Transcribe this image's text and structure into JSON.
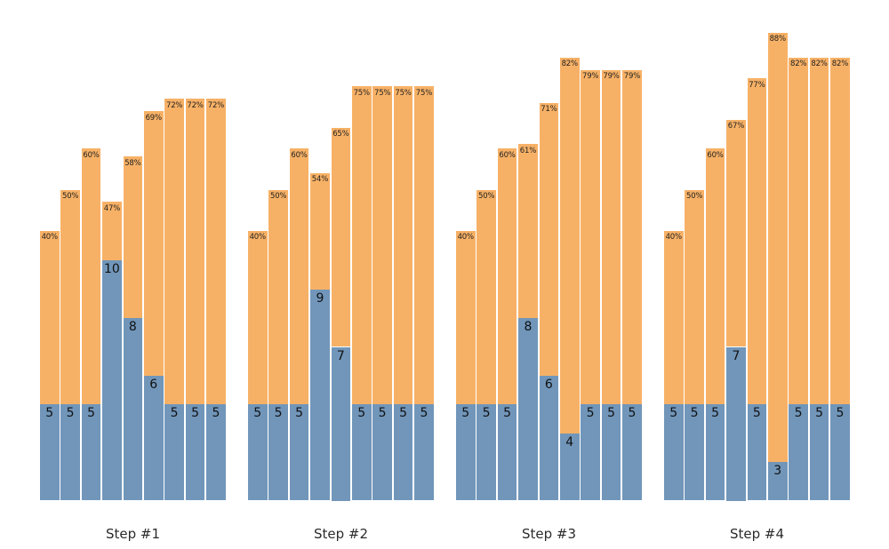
{
  "figure": {
    "background": "#ffffff"
  },
  "chart_data": {
    "type": "bar",
    "subtype": "grouped-stacked-columns",
    "title": "",
    "xlabel": "",
    "ylabel": "",
    "axes_visible": false,
    "gridlines": false,
    "legend": "none",
    "colors": {
      "bottom_segment": "#7196BA",
      "top_segment": "#F7B166"
    },
    "text_colors": {
      "bar_value": "#111111",
      "bar_percent": "#1f1f1f",
      "group_label": "#2b2b2b"
    },
    "segment_semantics": {
      "bottom_segment": "integer value printed at top of blue segment",
      "top_segment": "percentage printed at top of orange segment"
    },
    "groups": [
      {
        "label": "Step #1",
        "bars": [
          {
            "value": 5,
            "percent": 40,
            "value_label": "5",
            "percent_label": "40%"
          },
          {
            "value": 5,
            "percent": 50,
            "value_label": "5",
            "percent_label": "50%"
          },
          {
            "value": 5,
            "percent": 60,
            "value_label": "5",
            "percent_label": "60%"
          },
          {
            "value": 10,
            "percent": 47,
            "value_label": "10",
            "percent_label": "47%"
          },
          {
            "value": 8,
            "percent": 58,
            "value_label": "8",
            "percent_label": "58%"
          },
          {
            "value": 6,
            "percent": 69,
            "value_label": "6",
            "percent_label": "69%"
          },
          {
            "value": 5,
            "percent": 72,
            "value_label": "5",
            "percent_label": "72%"
          },
          {
            "value": 5,
            "percent": 72,
            "value_label": "5",
            "percent_label": "72%"
          },
          {
            "value": 5,
            "percent": 72,
            "value_label": "5",
            "percent_label": "72%"
          }
        ]
      },
      {
        "label": "Step #2",
        "bars": [
          {
            "value": 5,
            "percent": 40,
            "value_label": "5",
            "percent_label": "40%"
          },
          {
            "value": 5,
            "percent": 50,
            "value_label": "5",
            "percent_label": "50%"
          },
          {
            "value": 5,
            "percent": 60,
            "value_label": "5",
            "percent_label": "60%"
          },
          {
            "value": 9,
            "percent": 54,
            "value_label": "9",
            "percent_label": "54%"
          },
          {
            "value": 7,
            "percent": 65,
            "value_label": "7",
            "percent_label": "65%"
          },
          {
            "value": 5,
            "percent": 75,
            "value_label": "5",
            "percent_label": "75%"
          },
          {
            "value": 5,
            "percent": 75,
            "value_label": "5",
            "percent_label": "75%"
          },
          {
            "value": 5,
            "percent": 75,
            "value_label": "5",
            "percent_label": "75%"
          },
          {
            "value": 5,
            "percent": 75,
            "value_label": "5",
            "percent_label": "75%"
          }
        ]
      },
      {
        "label": "Step #3",
        "bars": [
          {
            "value": 5,
            "percent": 40,
            "value_label": "5",
            "percent_label": "40%"
          },
          {
            "value": 5,
            "percent": 50,
            "value_label": "5",
            "percent_label": "50%"
          },
          {
            "value": 5,
            "percent": 60,
            "value_label": "5",
            "percent_label": "60%"
          },
          {
            "value": 8,
            "percent": 61,
            "value_label": "8",
            "percent_label": "61%"
          },
          {
            "value": 6,
            "percent": 71,
            "value_label": "6",
            "percent_label": "71%"
          },
          {
            "value": 4,
            "percent": 82,
            "value_label": "4",
            "percent_label": "82%"
          },
          {
            "value": 5,
            "percent": 79,
            "value_label": "5",
            "percent_label": "79%"
          },
          {
            "value": 5,
            "percent": 79,
            "value_label": "5",
            "percent_label": "79%"
          },
          {
            "value": 5,
            "percent": 79,
            "value_label": "5",
            "percent_label": "79%"
          }
        ]
      },
      {
        "label": "Step #4",
        "bars": [
          {
            "value": 5,
            "percent": 40,
            "value_label": "5",
            "percent_label": "40%"
          },
          {
            "value": 5,
            "percent": 50,
            "value_label": "5",
            "percent_label": "50%"
          },
          {
            "value": 5,
            "percent": 60,
            "value_label": "5",
            "percent_label": "60%"
          },
          {
            "value": 7,
            "percent": 67,
            "value_label": "7",
            "percent_label": "67%"
          },
          {
            "value": 5,
            "percent": 77,
            "value_label": "5",
            "percent_label": "77%"
          },
          {
            "value": 3,
            "percent": 88,
            "value_label": "3",
            "percent_label": "88%"
          },
          {
            "value": 5,
            "percent": 82,
            "value_label": "5",
            "percent_label": "82%"
          },
          {
            "value": 5,
            "percent": 82,
            "value_label": "5",
            "percent_label": "82%"
          },
          {
            "value": 5,
            "percent": 82,
            "value_label": "5",
            "percent_label": "82%"
          }
        ]
      }
    ]
  }
}
